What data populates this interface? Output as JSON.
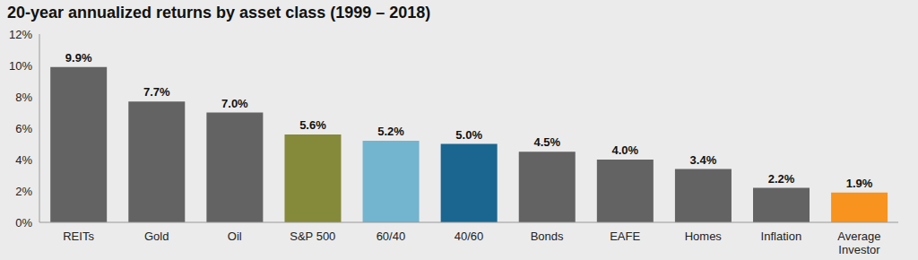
{
  "chart_data": {
    "type": "bar",
    "title": "20-year annualized returns by asset class (1999 – 2018)",
    "categories": [
      "REITs",
      "Gold",
      "Oil",
      "S&P 500",
      "60/40",
      "40/60",
      "Bonds",
      "EAFE",
      "Homes",
      "Inflation",
      "Average Investor"
    ],
    "values": [
      9.9,
      7.7,
      7.0,
      5.6,
      5.2,
      5.0,
      4.5,
      4.0,
      3.4,
      2.2,
      1.9
    ],
    "value_labels": [
      "9.9%",
      "7.7%",
      "7.0%",
      "5.6%",
      "5.2%",
      "5.0%",
      "4.5%",
      "4.0%",
      "3.4%",
      "2.2%",
      "1.9%"
    ],
    "colors": [
      "#636363",
      "#636363",
      "#636363",
      "#85893a",
      "#73b4cf",
      "#1a6690",
      "#636363",
      "#636363",
      "#636363",
      "#636363",
      "#f7931e"
    ],
    "ylim": [
      0,
      12
    ],
    "yticks": [
      {
        "value": 0,
        "label": "0%"
      },
      {
        "value": 2,
        "label": "2%"
      },
      {
        "value": 4,
        "label": "4%"
      },
      {
        "value": 6,
        "label": "6%"
      },
      {
        "value": 8,
        "label": "8%"
      },
      {
        "value": 10,
        "label": "10%"
      },
      {
        "value": 12,
        "label": "12%"
      }
    ],
    "grid": false,
    "data_labels": true
  }
}
